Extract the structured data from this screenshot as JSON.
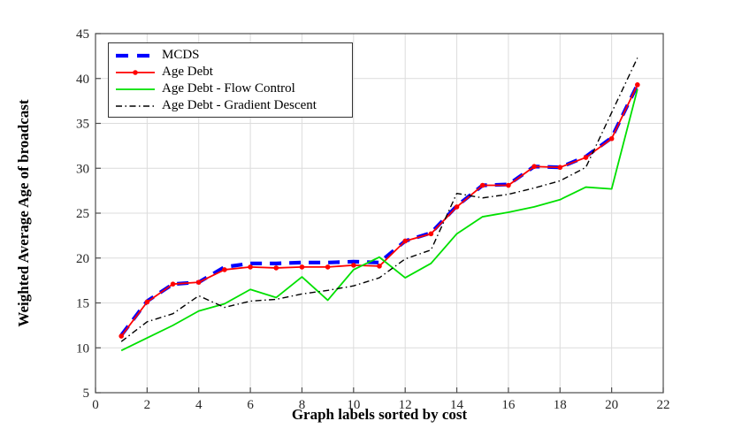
{
  "figure": {
    "background": "#ffffff",
    "grid_color": "#dcdcdc",
    "axis_color": "#4d4d4d",
    "tick_label_color": "#262626"
  },
  "chart_data": {
    "type": "line",
    "title": "",
    "xlabel": "Graph labels sorted by cost",
    "ylabel": "Weighted Average Age of broadcast",
    "xlim": [
      0,
      22
    ],
    "ylim": [
      5,
      45
    ],
    "xticks": [
      0,
      2,
      4,
      6,
      8,
      10,
      12,
      14,
      16,
      18,
      20,
      22
    ],
    "yticks": [
      5,
      10,
      15,
      20,
      25,
      30,
      35,
      40,
      45
    ],
    "grid": true,
    "legend_position": "top-left-inside",
    "x": [
      1,
      2,
      3,
      4,
      5,
      6,
      7,
      8,
      9,
      10,
      11,
      12,
      13,
      14,
      15,
      16,
      17,
      18,
      19,
      20,
      21
    ],
    "series": [
      {
        "name": "MCDS",
        "color": "#0000ff",
        "style": "dashed",
        "width": 4.2,
        "marker": null,
        "values": [
          11.4,
          15.2,
          17.1,
          17.3,
          19.0,
          19.4,
          19.4,
          19.5,
          19.5,
          19.6,
          19.5,
          21.9,
          22.8,
          25.8,
          28.1,
          28.2,
          30.2,
          30.1,
          31.3,
          33.4,
          39.3
        ]
      },
      {
        "name": "Age Debt",
        "color": "#ff0000",
        "style": "solid",
        "width": 1.8,
        "marker": "circle",
        "values": [
          11.3,
          15.1,
          17.1,
          17.3,
          18.7,
          19.0,
          18.9,
          19.0,
          19.0,
          19.2,
          19.1,
          21.9,
          22.7,
          25.7,
          28.1,
          28.1,
          30.2,
          30.1,
          31.2,
          33.3,
          39.3
        ]
      },
      {
        "name": "Age Debt - Flow Control",
        "color": "#00e000",
        "style": "solid",
        "width": 1.8,
        "marker": null,
        "values": [
          9.7,
          11.1,
          12.5,
          14.1,
          14.9,
          16.5,
          15.6,
          17.9,
          15.3,
          18.7,
          20.1,
          17.8,
          19.4,
          22.7,
          24.6,
          25.1,
          25.7,
          26.5,
          27.9,
          27.7,
          38.8
        ]
      },
      {
        "name": "Age Debt - Gradient Descent",
        "color": "#000000",
        "style": "dash-dot",
        "width": 1.4,
        "marker": null,
        "values": [
          10.7,
          12.9,
          13.8,
          15.8,
          14.5,
          15.2,
          15.4,
          16.0,
          16.4,
          16.9,
          17.8,
          19.9,
          20.9,
          27.2,
          26.7,
          27.1,
          27.8,
          28.6,
          30.1,
          36.2,
          42.3
        ]
      }
    ]
  }
}
